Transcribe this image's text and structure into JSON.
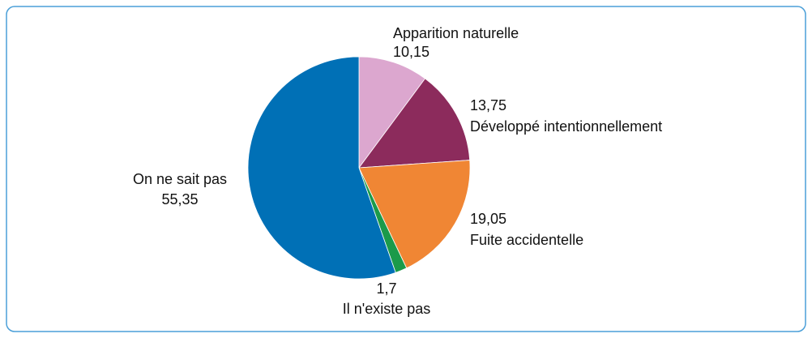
{
  "chart_data": {
    "type": "pie",
    "categories": [
      "Apparition naturelle",
      "Développé intentionnellement",
      "Fuite accidentelle",
      "Il n'existe pas",
      "On ne sait pas"
    ],
    "values": [
      10.15,
      13.75,
      19.05,
      1.7,
      55.35
    ],
    "value_labels": [
      "10,15",
      "13,75",
      "19,05",
      "1,7",
      "55,35"
    ],
    "colors": [
      "#dca7cf",
      "#8c2b5c",
      "#f08634",
      "#1b9a4a",
      "#0070b6"
    ]
  }
}
